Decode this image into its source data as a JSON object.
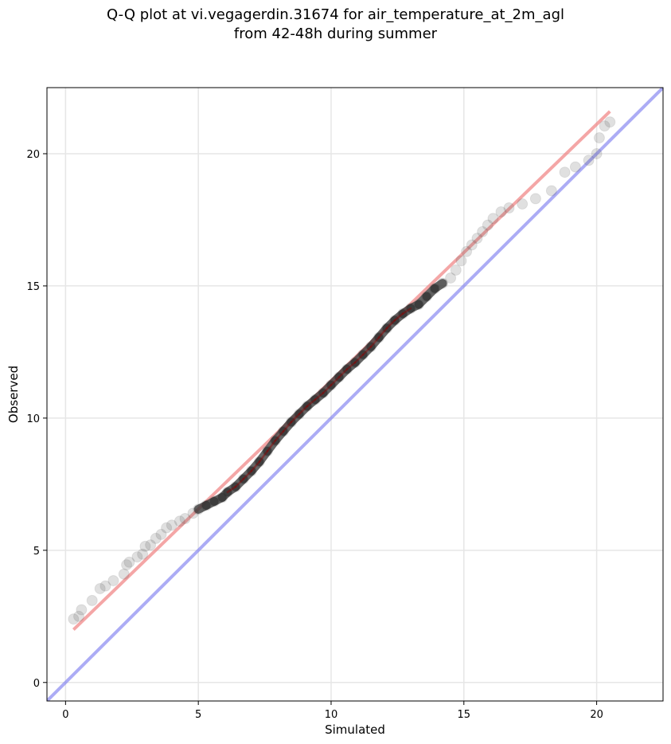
{
  "title_line1": "Q-Q plot at vi.vegagerdin.31674 for air_temperature_at_2m_agl",
  "title_line2": "from 42-48h during summer",
  "chart_data": {
    "type": "scatter",
    "title": "Q-Q plot at vi.vegagerdin.31674 for air_temperature_at_2m_agl from 42-48h during summer",
    "xlabel": "Simulated",
    "ylabel": "Observed",
    "xlim": [
      -0.7,
      22.5
    ],
    "ylim": [
      -0.7,
      22.5
    ],
    "xticks": [
      0,
      5,
      10,
      15,
      20
    ],
    "yticks": [
      0,
      5,
      10,
      15,
      20
    ],
    "xticklabels": [
      "0",
      "5",
      "10",
      "15",
      "20"
    ],
    "yticklabels": [
      "0",
      "5",
      "10",
      "15",
      "20"
    ],
    "grid": true,
    "colors": {
      "points": "#555555",
      "fit_line": "#f08080",
      "fit_line_core": "#8b0000",
      "identity_line": "#8080f0"
    },
    "series": [
      {
        "type": "scatter",
        "values": [
          {
            "x": 0.3,
            "y": 2.4
          },
          {
            "x": 0.5,
            "y": 2.5
          },
          {
            "x": 0.6,
            "y": 2.75
          },
          {
            "x": 1.0,
            "y": 3.1
          },
          {
            "x": 1.3,
            "y": 3.55
          },
          {
            "x": 1.5,
            "y": 3.65
          },
          {
            "x": 1.8,
            "y": 3.85
          },
          {
            "x": 2.2,
            "y": 4.1
          },
          {
            "x": 2.3,
            "y": 4.45
          },
          {
            "x": 2.4,
            "y": 4.55
          },
          {
            "x": 2.7,
            "y": 4.75
          },
          {
            "x": 2.9,
            "y": 4.85
          },
          {
            "x": 3.0,
            "y": 5.15
          },
          {
            "x": 3.2,
            "y": 5.2
          },
          {
            "x": 3.4,
            "y": 5.45
          },
          {
            "x": 3.6,
            "y": 5.6
          },
          {
            "x": 3.8,
            "y": 5.85
          },
          {
            "x": 4.0,
            "y": 5.95
          },
          {
            "x": 4.3,
            "y": 6.1
          },
          {
            "x": 4.5,
            "y": 6.2
          },
          {
            "x": 4.8,
            "y": 6.4
          },
          {
            "x": 5.0,
            "y": 6.55
          },
          {
            "x": 5.3,
            "y": 6.7
          },
          {
            "x": 5.6,
            "y": 6.85
          },
          {
            "x": 5.9,
            "y": 7.0
          },
          {
            "x": 6.1,
            "y": 7.2
          },
          {
            "x": 6.4,
            "y": 7.4
          },
          {
            "x": 6.7,
            "y": 7.7
          },
          {
            "x": 7.0,
            "y": 8.0
          },
          {
            "x": 7.3,
            "y": 8.35
          },
          {
            "x": 7.6,
            "y": 8.75
          },
          {
            "x": 7.9,
            "y": 9.15
          },
          {
            "x": 8.2,
            "y": 9.5
          },
          {
            "x": 8.5,
            "y": 9.85
          },
          {
            "x": 8.8,
            "y": 10.15
          },
          {
            "x": 9.1,
            "y": 10.45
          },
          {
            "x": 9.4,
            "y": 10.7
          },
          {
            "x": 9.7,
            "y": 10.95
          },
          {
            "x": 10.0,
            "y": 11.25
          },
          {
            "x": 10.3,
            "y": 11.55
          },
          {
            "x": 10.6,
            "y": 11.85
          },
          {
            "x": 10.9,
            "y": 12.1
          },
          {
            "x": 11.2,
            "y": 12.4
          },
          {
            "x": 11.5,
            "y": 12.7
          },
          {
            "x": 11.8,
            "y": 13.05
          },
          {
            "x": 12.1,
            "y": 13.4
          },
          {
            "x": 12.4,
            "y": 13.7
          },
          {
            "x": 12.7,
            "y": 13.95
          },
          {
            "x": 13.0,
            "y": 14.15
          },
          {
            "x": 13.3,
            "y": 14.3
          },
          {
            "x": 13.6,
            "y": 14.6
          },
          {
            "x": 13.9,
            "y": 14.9
          },
          {
            "x": 14.2,
            "y": 15.1
          },
          {
            "x": 14.5,
            "y": 15.3
          },
          {
            "x": 14.7,
            "y": 15.6
          },
          {
            "x": 14.9,
            "y": 15.95
          },
          {
            "x": 15.1,
            "y": 16.3
          },
          {
            "x": 15.3,
            "y": 16.55
          },
          {
            "x": 15.5,
            "y": 16.8
          },
          {
            "x": 15.7,
            "y": 17.05
          },
          {
            "x": 15.9,
            "y": 17.3
          },
          {
            "x": 16.1,
            "y": 17.55
          },
          {
            "x": 16.4,
            "y": 17.8
          },
          {
            "x": 16.7,
            "y": 17.95
          },
          {
            "x": 17.2,
            "y": 18.1
          },
          {
            "x": 17.7,
            "y": 18.3
          },
          {
            "x": 18.3,
            "y": 18.6
          },
          {
            "x": 18.8,
            "y": 19.3
          },
          {
            "x": 19.2,
            "y": 19.5
          },
          {
            "x": 19.7,
            "y": 19.75
          },
          {
            "x": 20.0,
            "y": 20.0
          },
          {
            "x": 20.1,
            "y": 20.6
          },
          {
            "x": 20.3,
            "y": 21.05
          },
          {
            "x": 20.5,
            "y": 21.2
          }
        ]
      },
      {
        "type": "line",
        "values": [
          {
            "x": 0.3,
            "y": 2.0
          },
          {
            "x": 20.5,
            "y": 21.6
          }
        ]
      },
      {
        "type": "line",
        "values": [
          {
            "x": -0.7,
            "y": -0.7
          },
          {
            "x": 22.5,
            "y": 22.5
          }
        ]
      }
    ]
  }
}
